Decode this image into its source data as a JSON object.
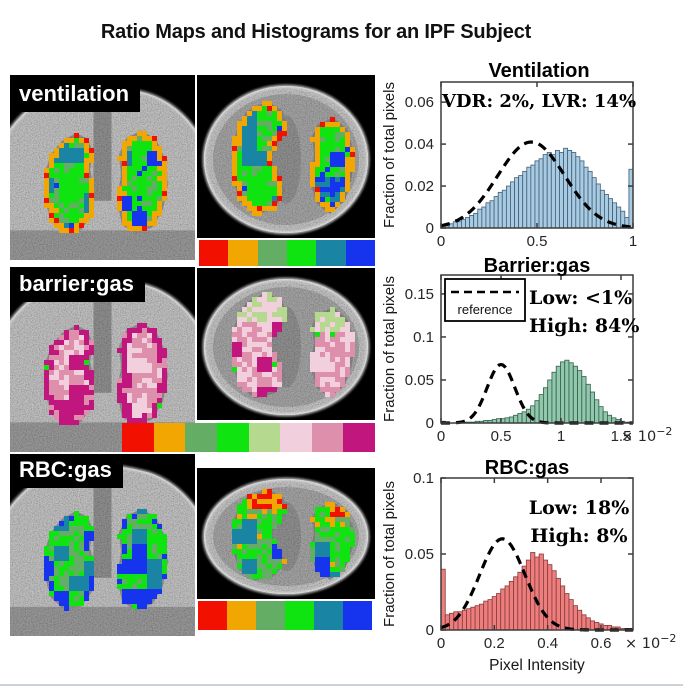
{
  "figure": {
    "title": "Ratio Maps and Histograms for an IPF Subject"
  },
  "maps": {
    "rows": [
      {
        "id": "ventilation",
        "label": "ventilation",
        "colorbar": [
          "#f21000",
          "#f2a602",
          "#63ad64",
          "#10e410",
          "#1a84a4",
          "#1634ee"
        ]
      },
      {
        "id": "barrier",
        "label": "barrier:gas",
        "colorbar": [
          "#f21000",
          "#f2a602",
          "#63ad64",
          "#10e410",
          "#b4d98f",
          "#f2cfdc",
          "#de8fac",
          "#c0167e"
        ]
      },
      {
        "id": "rbc",
        "label": "RBC:gas",
        "colorbar": [
          "#f21000",
          "#f2a602",
          "#63ad64",
          "#10e410",
          "#1a84a4",
          "#1634ee"
        ]
      }
    ]
  },
  "chart_data": [
    {
      "type": "bar",
      "title": "Ventilation",
      "ylabel": "Fraction of total pixels",
      "xlabel": "",
      "xlim": [
        0,
        1
      ],
      "ylim": [
        0,
        0.0696
      ],
      "x_ticks": [
        "0",
        "0.5",
        "1"
      ],
      "x_tick_values": [
        0,
        0.5,
        1
      ],
      "y_ticks": [
        "0",
        "0.02",
        "0.04",
        "0.06"
      ],
      "y_tick_values": [
        0,
        0.02,
        0.04,
        0.06
      ],
      "bar_color": "#a9cbe2",
      "bar_edge": "#3f5e78",
      "bin_range": [
        0,
        1
      ],
      "values": [
        0.001,
        0.001,
        0.002,
        0.003,
        0.003,
        0.004,
        0.005,
        0.006,
        0.007,
        0.009,
        0.01,
        0.012,
        0.013,
        0.015,
        0.017,
        0.018,
        0.02,
        0.022,
        0.024,
        0.025,
        0.027,
        0.029,
        0.03,
        0.032,
        0.033,
        0.035,
        0.036,
        0.035,
        0.037,
        0.036,
        0.038,
        0.037,
        0.036,
        0.034,
        0.032,
        0.029,
        0.027,
        0.024,
        0.021,
        0.018,
        0.016,
        0.014,
        0.012,
        0.01,
        0.008,
        0.005,
        0.028
      ],
      "reference_curve": {
        "style": "dashed",
        "color": "#000000",
        "peak_x": 0.47,
        "peak_y": 0.041,
        "sigma": 0.175
      },
      "annotations": [
        "VDR: 2%, LVR: 14%"
      ],
      "legend": null,
      "x_multiplier": null
    },
    {
      "type": "bar",
      "title": "Barrier:gas",
      "ylabel": "Fraction of total pixels",
      "xlabel": "",
      "xlim": [
        0,
        1.6
      ],
      "ylim": [
        0,
        0.172
      ],
      "x_ticks": [
        "0",
        "0.5",
        "1",
        "1.5"
      ],
      "x_tick_values": [
        0,
        0.5,
        1,
        1.5
      ],
      "y_ticks": [
        "0",
        "0.05",
        "0.1",
        "0.15"
      ],
      "y_tick_values": [
        0,
        0.05,
        0.1,
        0.15
      ],
      "bar_color": "#92c7ac",
      "bar_edge": "#2f5f4c",
      "bin_range": [
        0,
        1.6
      ],
      "values": [
        0.002,
        0,
        0,
        0,
        0,
        0.001,
        0.001,
        0.001,
        0.002,
        0.002,
        0.003,
        0.003,
        0.004,
        0.005,
        0.005,
        0.006,
        0.007,
        0.009,
        0.011,
        0.013,
        0.016,
        0.02,
        0.026,
        0.033,
        0.041,
        0.05,
        0.059,
        0.066,
        0.071,
        0.073,
        0.07,
        0.066,
        0.061,
        0.054,
        0.045,
        0.036,
        0.027,
        0.019,
        0.013,
        0.009,
        0.006,
        0.004,
        0.002,
        0.001,
        0.001
      ],
      "reference_curve": {
        "style": "dashed",
        "color": "#000000",
        "peak_x": 0.5,
        "peak_y": 0.068,
        "sigma": 0.115
      },
      "annotations": [
        "Low: <1%",
        "High: 84%"
      ],
      "legend": {
        "label": "reference"
      },
      "x_multiplier": {
        "text": "× 10⁻²",
        "base": "× 10",
        "exp": "−2"
      }
    },
    {
      "type": "bar",
      "title": "RBC:gas",
      "ylabel": "Fraction of total pixels",
      "xlabel": "Pixel Intensity",
      "xlim": [
        0,
        0.72
      ],
      "ylim": [
        0,
        0.1
      ],
      "x_ticks": [
        "0",
        "0.2",
        "0.4",
        "0.6"
      ],
      "x_tick_values": [
        0,
        0.2,
        0.4,
        0.6
      ],
      "y_ticks": [
        "0",
        "0.05",
        "0.1"
      ],
      "y_tick_values": [
        0,
        0.05,
        0.1
      ],
      "bar_color": "#ec7e7e",
      "bar_edge": "#8a3a3a",
      "bin_range": [
        0,
        0.72
      ],
      "values": [
        0.04,
        0.01,
        0.011,
        0.012,
        0.012,
        0.013,
        0.014,
        0.015,
        0.016,
        0.017,
        0.019,
        0.02,
        0.022,
        0.024,
        0.027,
        0.029,
        0.032,
        0.035,
        0.038,
        0.042,
        0.046,
        0.051,
        0.048,
        0.05,
        0.046,
        0.043,
        0.039,
        0.034,
        0.029,
        0.024,
        0.02,
        0.016,
        0.013,
        0.01,
        0.008,
        0.006,
        0.005,
        0.004,
        0.003,
        0.003,
        0.002,
        0.002,
        0.001,
        0.001,
        0.001
      ],
      "reference_curve": {
        "style": "dashed",
        "color": "#000000",
        "peak_x": 0.23,
        "peak_y": 0.06,
        "sigma": 0.085
      },
      "annotations": [
        "Low: 18%",
        "High: 8%"
      ],
      "legend": null,
      "x_multiplier": {
        "text": "× 10⁻²",
        "base": "× 10",
        "exp": "−2"
      }
    }
  ]
}
